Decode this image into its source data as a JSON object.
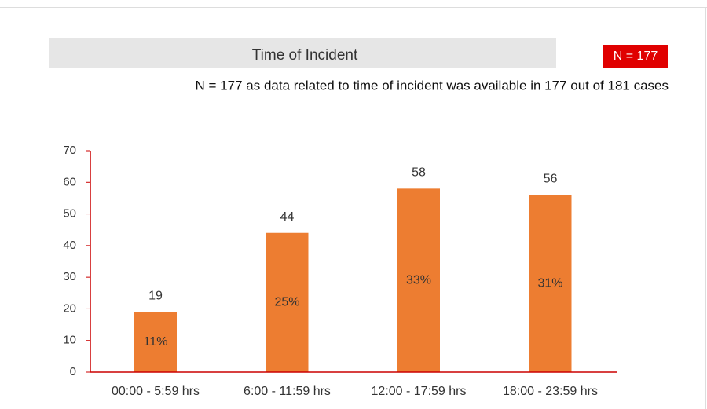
{
  "chart_data": {
    "type": "bar",
    "title": "Time of Incident",
    "badge": "N = 177",
    "note": "N = 177 as data related to time of incident was available in 177 out of 181 cases",
    "categories": [
      "00:00 - 5:59 hrs",
      "6:00 - 11:59 hrs",
      "12:00 - 17:59 hrs",
      "18:00 - 23:59 hrs"
    ],
    "values": [
      19,
      44,
      58,
      56
    ],
    "percent_labels": [
      "11%",
      "25%",
      "33%",
      "31%"
    ],
    "color": "#ed7d31",
    "axis_color": "#cc0000",
    "ylim": [
      0,
      70
    ],
    "yticks": [
      0,
      10,
      20,
      30,
      40,
      50,
      60,
      70
    ],
    "grid": false
  }
}
